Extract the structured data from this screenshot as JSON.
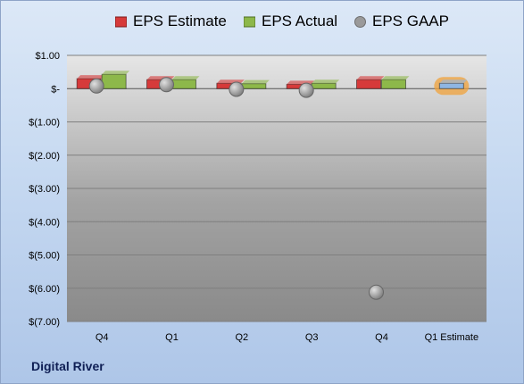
{
  "chart_data": {
    "type": "bar",
    "categories": [
      "Q4",
      "Q1",
      "Q2",
      "Q3",
      "Q4",
      "Q1 Estimate"
    ],
    "series": [
      {
        "name": "EPS Estimate",
        "kind": "bar",
        "color": "#d63a3a",
        "values": [
          0.3,
          0.27,
          0.16,
          0.13,
          0.27,
          null
        ]
      },
      {
        "name": "EPS Actual",
        "kind": "bar",
        "color": "#8db84a",
        "values": [
          0.43,
          0.27,
          0.15,
          0.16,
          0.27,
          null
        ]
      },
      {
        "name": "EPS GAAP",
        "kind": "marker",
        "color": "#9a9a9a",
        "values": [
          0.08,
          0.12,
          -0.02,
          -0.05,
          -6.12,
          null
        ]
      },
      {
        "name": "",
        "kind": "bar",
        "color": "#8fb6e2",
        "highlight": "#f0a23a",
        "values": [
          null,
          null,
          null,
          null,
          null,
          0.16
        ]
      }
    ],
    "ylim": [
      -7,
      1
    ],
    "ytick_values": [
      1,
      0,
      -1,
      -2,
      -3,
      -4,
      -5,
      -6,
      -7
    ],
    "ytick_labels": [
      "$1.00",
      "$-",
      "$(1.00)",
      "$(2.00)",
      "$(3.00)",
      "$(4.00)",
      "$(5.00)",
      "$(6.00)",
      "$(7.00)"
    ],
    "grid": true,
    "legend_position": "top"
  },
  "footer": {
    "company": "Digital River"
  }
}
